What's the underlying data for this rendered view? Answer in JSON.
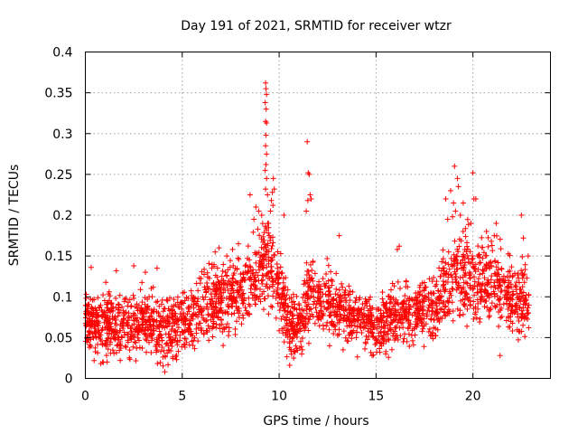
{
  "chart_data": {
    "type": "scatter",
    "title": "Day 191 of 2021, SRMTID for receiver wtzr",
    "xlabel": "GPS time / hours",
    "ylabel": "SRMTID / TECUs",
    "xlim": [
      0,
      24
    ],
    "ylim": [
      0,
      0.4
    ],
    "x_ticks": [
      0,
      5,
      10,
      15,
      20
    ],
    "x_tick_labels": [
      "0",
      "5",
      "10",
      "15",
      "20"
    ],
    "y_ticks": [
      0,
      0.05,
      0.1,
      0.15,
      0.2,
      0.25,
      0.3,
      0.35,
      0.4
    ],
    "y_tick_labels": [
      "0",
      "0.05",
      "0.1",
      "0.15",
      "0.2",
      "0.25",
      "0.3",
      "0.35",
      "0.4"
    ],
    "grid": true,
    "marker": "plus",
    "color": "#ff0000",
    "series": [
      {
        "name": "SRMTID",
        "envelope": {
          "x": [
            0,
            1,
            2,
            3,
            4,
            5,
            6,
            7,
            8,
            8.6,
            9,
            9.3,
            9.6,
            10,
            10.5,
            11,
            11.5,
            12,
            13,
            14,
            15,
            16,
            17,
            18,
            19,
            19.5,
            20,
            21,
            22,
            22.9
          ],
          "center": [
            0.07,
            0.065,
            0.065,
            0.07,
            0.055,
            0.07,
            0.085,
            0.1,
            0.105,
            0.12,
            0.135,
            0.15,
            0.13,
            0.11,
            0.065,
            0.06,
            0.1,
            0.1,
            0.085,
            0.075,
            0.065,
            0.08,
            0.08,
            0.09,
            0.12,
            0.13,
            0.12,
            0.12,
            0.1,
            0.09
          ],
          "spread": [
            0.022,
            0.025,
            0.025,
            0.025,
            0.025,
            0.025,
            0.028,
            0.03,
            0.03,
            0.035,
            0.04,
            0.04,
            0.035,
            0.03,
            0.025,
            0.025,
            0.03,
            0.03,
            0.025,
            0.022,
            0.022,
            0.025,
            0.025,
            0.028,
            0.035,
            0.035,
            0.035,
            0.035,
            0.03,
            0.028
          ]
        },
        "points": [
          [
            9.3,
            0.362
          ],
          [
            9.32,
            0.355
          ],
          [
            9.35,
            0.348
          ],
          [
            9.28,
            0.338
          ],
          [
            9.33,
            0.33
          ],
          [
            9.3,
            0.315
          ],
          [
            9.35,
            0.313
          ],
          [
            9.32,
            0.298
          ],
          [
            9.3,
            0.285
          ],
          [
            9.35,
            0.275
          ],
          [
            9.32,
            0.262
          ],
          [
            9.28,
            0.255
          ],
          [
            9.35,
            0.245
          ],
          [
            9.3,
            0.232
          ],
          [
            9.4,
            0.225
          ],
          [
            9.6,
            0.218
          ],
          [
            9.65,
            0.228
          ],
          [
            9.7,
            0.245
          ],
          [
            9.75,
            0.232
          ],
          [
            9.55,
            0.205
          ],
          [
            9.68,
            0.212
          ],
          [
            8.5,
            0.225
          ],
          [
            8.8,
            0.21
          ],
          [
            8.95,
            0.205
          ],
          [
            9.1,
            0.2
          ],
          [
            10.25,
            0.2
          ],
          [
            9.45,
            0.19
          ],
          [
            8.7,
            0.195
          ],
          [
            11.45,
            0.29
          ],
          [
            11.5,
            0.252
          ],
          [
            11.55,
            0.25
          ],
          [
            11.48,
            0.218
          ],
          [
            11.6,
            0.225
          ],
          [
            11.65,
            0.22
          ],
          [
            11.4,
            0.205
          ],
          [
            13.1,
            0.175
          ],
          [
            16.2,
            0.162
          ],
          [
            16.1,
            0.158
          ],
          [
            18.6,
            0.22
          ],
          [
            18.85,
            0.23
          ],
          [
            19.0,
            0.215
          ],
          [
            19.05,
            0.26
          ],
          [
            19.2,
            0.245
          ],
          [
            19.1,
            0.205
          ],
          [
            19.25,
            0.235
          ],
          [
            18.7,
            0.195
          ],
          [
            18.95,
            0.198
          ],
          [
            20.0,
            0.252
          ],
          [
            20.05,
            0.22
          ],
          [
            20.15,
            0.22
          ],
          [
            19.5,
            0.215
          ],
          [
            19.35,
            0.2
          ],
          [
            19.9,
            0.19
          ],
          [
            20.7,
            0.18
          ],
          [
            21.2,
            0.19
          ],
          [
            22.5,
            0.2
          ],
          [
            22.85,
            0.15
          ],
          [
            22.6,
            0.172
          ],
          [
            21.1,
            0.175
          ],
          [
            20.95,
            0.168
          ],
          [
            0.3,
            0.136
          ],
          [
            1.6,
            0.132
          ],
          [
            2.5,
            0.138
          ],
          [
            3.7,
            0.135
          ],
          [
            3.1,
            0.13
          ],
          [
            6.7,
            0.155
          ],
          [
            7.3,
            0.15
          ],
          [
            7.9,
            0.165
          ],
          [
            7.6,
            0.158
          ],
          [
            6.9,
            0.16
          ],
          [
            4.1,
            0.008
          ],
          [
            0.8,
            0.018
          ],
          [
            1.8,
            0.022
          ],
          [
            10.75,
            0.025
          ],
          [
            15.5,
            0.03
          ],
          [
            14.8,
            0.028
          ],
          [
            21.4,
            0.028
          ],
          [
            15.2,
            0.032
          ],
          [
            13.3,
            0.035
          ],
          [
            12.6,
            0.04
          ]
        ]
      }
    ]
  }
}
